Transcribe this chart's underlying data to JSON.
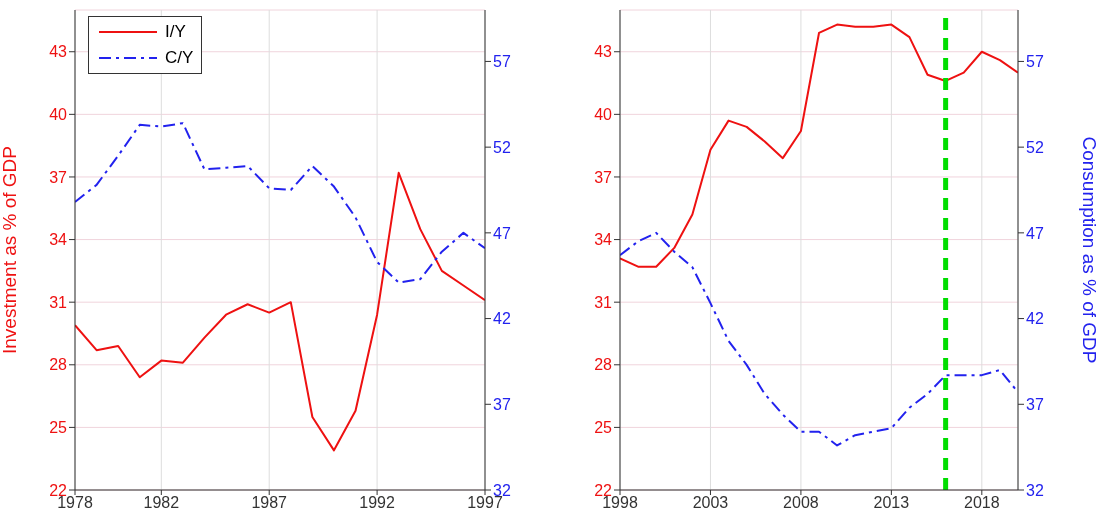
{
  "chart_data": [
    {
      "type": "line",
      "ylabel": "Investment as % of GDP",
      "x": [
        1978,
        1979,
        1980,
        1981,
        1982,
        1983,
        1984,
        1985,
        1986,
        1987,
        1988,
        1989,
        1990,
        1991,
        1992,
        1993,
        1994,
        1995,
        1996,
        1997
      ],
      "xlim": [
        1978,
        1997
      ],
      "xticks": [
        1978,
        1982,
        1987,
        1992,
        1997
      ],
      "ylim": [
        22,
        45
      ],
      "yticks": [
        22,
        25,
        28,
        31,
        34,
        37,
        40,
        43
      ],
      "y2lim": [
        32,
        60
      ],
      "y2ticks": [
        32,
        37,
        42,
        47,
        52,
        57
      ],
      "grid": true,
      "legend": "top left",
      "series": [
        {
          "name": "I/Y",
          "color": "#ee1111",
          "line_style": "solid",
          "values": [
            29.9,
            28.7,
            28.9,
            27.4,
            28.2,
            28.1,
            29.3,
            30.4,
            30.9,
            30.5,
            31.0,
            25.5,
            23.9,
            25.8,
            30.4,
            37.2,
            34.5,
            32.5,
            31.8,
            31.1
          ]
        },
        {
          "name": "C/Y",
          "color": "#2222ee",
          "line_style": "dashdot",
          "axis": "y2",
          "values": [
            48.8,
            49.8,
            51.5,
            53.3,
            53.2,
            53.4,
            50.7,
            50.8,
            50.9,
            49.6,
            49.5,
            50.9,
            49.7,
            47.9,
            45.3,
            44.1,
            44.3,
            45.9,
            47.0,
            46.1
          ]
        }
      ]
    },
    {
      "type": "line",
      "y2label": "Consumption as % of GDP",
      "x": [
        1998,
        1999,
        2000,
        2001,
        2002,
        2003,
        2004,
        2005,
        2006,
        2007,
        2008,
        2009,
        2010,
        2011,
        2012,
        2013,
        2014,
        2015,
        2016,
        2017,
        2018,
        2019,
        2020
      ],
      "xlim": [
        1998,
        2020
      ],
      "xticks": [
        1998,
        2003,
        2008,
        2013,
        2018
      ],
      "ylim": [
        22,
        45
      ],
      "yticks": [
        22,
        25,
        28,
        31,
        34,
        37,
        40,
        43
      ],
      "y2lim": [
        32,
        60
      ],
      "y2ticks": [
        32,
        37,
        42,
        47,
        52,
        57
      ],
      "grid": true,
      "ref_lines": [
        {
          "axis": "x",
          "value": 2016,
          "color": "#00dd00",
          "line_style": "dashed"
        }
      ],
      "series": [
        {
          "color": "#ee1111",
          "line_style": "solid",
          "values": [
            33.1,
            32.7,
            32.7,
            33.6,
            35.2,
            38.3,
            39.7,
            39.4,
            38.7,
            37.9,
            39.2,
            43.9,
            44.3,
            44.2,
            44.2,
            44.3,
            43.7,
            41.9,
            41.6,
            42.0,
            43.0,
            42.6,
            42.0
          ]
        },
        {
          "color": "#2222ee",
          "line_style": "dashdot",
          "axis": "y2",
          "values": [
            45.7,
            46.5,
            47.0,
            45.9,
            45.0,
            42.9,
            40.7,
            39.3,
            37.6,
            36.4,
            35.4,
            35.4,
            34.6,
            35.2,
            35.4,
            35.6,
            36.8,
            37.6,
            38.7,
            38.7,
            38.7,
            39.0,
            37.7
          ]
        }
      ]
    }
  ]
}
